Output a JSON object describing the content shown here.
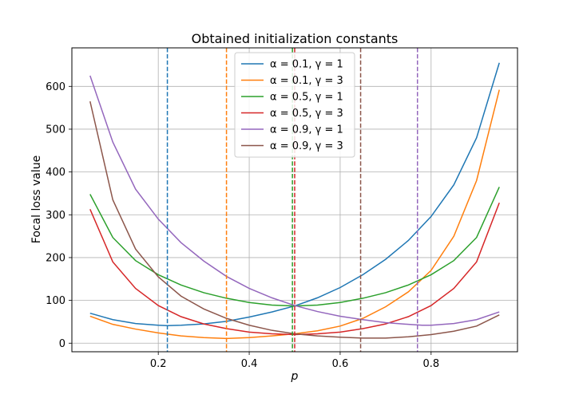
{
  "chart_data": {
    "type": "line",
    "title": "Obtained initialization constants",
    "xlabel": "p",
    "ylabel": "Focal loss value",
    "xlim": [
      0.01,
      0.99
    ],
    "ylim": [
      -20,
      690
    ],
    "xticks": [
      0.2,
      0.4,
      0.6,
      0.8
    ],
    "xtick_labels": [
      "0.2",
      "0.4",
      "0.6",
      "0.8"
    ],
    "yticks": [
      0,
      100,
      200,
      300,
      400,
      500,
      600
    ],
    "ytick_labels": [
      "0",
      "100",
      "200",
      "300",
      "400",
      "500",
      "600"
    ],
    "grid": true,
    "legend_position": "top-center",
    "series": [
      {
        "name": "α = 0.1, γ = 1",
        "color": "#1f77b4",
        "x": [
          0.05,
          0.1,
          0.15,
          0.2,
          0.22,
          0.25,
          0.3,
          0.35,
          0.4,
          0.45,
          0.5,
          0.55,
          0.6,
          0.65,
          0.7,
          0.75,
          0.8,
          0.85,
          0.9,
          0.95
        ],
        "y": [
          70,
          55,
          46,
          42,
          41,
          42,
          45,
          51,
          61,
          73,
          87,
          106,
          130,
          160,
          196,
          240,
          296,
          370,
          480,
          655
        ],
        "vline": 0.22
      },
      {
        "name": "α = 0.1, γ = 3",
        "color": "#ff7f0e",
        "x": [
          0.05,
          0.1,
          0.15,
          0.2,
          0.25,
          0.3,
          0.35,
          0.4,
          0.45,
          0.5,
          0.55,
          0.6,
          0.65,
          0.7,
          0.75,
          0.8,
          0.85,
          0.9,
          0.95
        ],
        "y": [
          63,
          44,
          33,
          24,
          17,
          13,
          11,
          13,
          17,
          22,
          29,
          40,
          58,
          85,
          120,
          170,
          250,
          380,
          592
        ],
        "vline": 0.35
      },
      {
        "name": "α = 0.5, γ = 1",
        "color": "#2ca02c",
        "x": [
          0.05,
          0.1,
          0.15,
          0.2,
          0.25,
          0.3,
          0.35,
          0.4,
          0.45,
          0.5,
          0.55,
          0.6,
          0.65,
          0.7,
          0.75,
          0.8,
          0.85,
          0.9,
          0.95
        ],
        "y": [
          348,
          247,
          193,
          160,
          136,
          118,
          105,
          95,
          89,
          87,
          89,
          95,
          105,
          118,
          136,
          160,
          193,
          247,
          365
        ],
        "vline": 0.495
      },
      {
        "name": "α = 0.5, γ = 3",
        "color": "#d62728",
        "x": [
          0.05,
          0.1,
          0.15,
          0.2,
          0.25,
          0.3,
          0.35,
          0.4,
          0.45,
          0.5,
          0.55,
          0.6,
          0.65,
          0.7,
          0.75,
          0.8,
          0.85,
          0.9,
          0.95
        ],
        "y": [
          313,
          190,
          128,
          88,
          62,
          45,
          34,
          26,
          22,
          20,
          22,
          26,
          34,
          45,
          62,
          88,
          128,
          190,
          328
        ],
        "vline": 0.5
      },
      {
        "name": "α = 0.9, γ = 1",
        "color": "#9467bd",
        "x": [
          0.05,
          0.1,
          0.15,
          0.2,
          0.25,
          0.3,
          0.35,
          0.4,
          0.45,
          0.5,
          0.55,
          0.6,
          0.65,
          0.7,
          0.75,
          0.78,
          0.8,
          0.85,
          0.9,
          0.95
        ],
        "y": [
          625,
          470,
          360,
          290,
          235,
          192,
          156,
          128,
          106,
          88,
          74,
          63,
          55,
          48,
          44,
          42,
          42,
          46,
          55,
          73
        ],
        "vline": 0.77
      },
      {
        "name": "α = 0.9, γ = 3",
        "color": "#8c564b",
        "x": [
          0.05,
          0.1,
          0.15,
          0.2,
          0.25,
          0.3,
          0.35,
          0.4,
          0.45,
          0.5,
          0.55,
          0.6,
          0.65,
          0.7,
          0.75,
          0.8,
          0.85,
          0.9,
          0.95
        ],
        "y": [
          565,
          335,
          220,
          155,
          110,
          80,
          58,
          42,
          30,
          22,
          17,
          14,
          12,
          12,
          15,
          20,
          28,
          40,
          66
        ],
        "vline": 0.645
      }
    ]
  }
}
